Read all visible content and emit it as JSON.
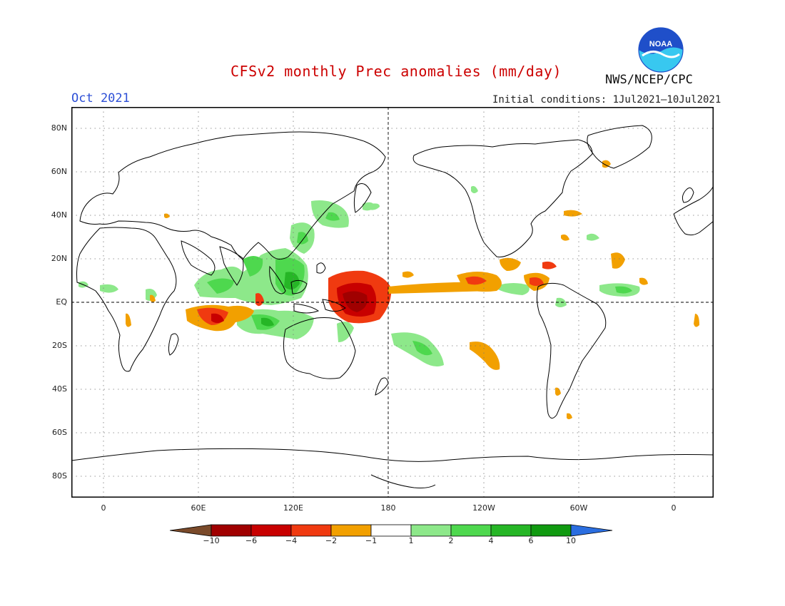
{
  "header": {
    "title": "CFSv2 monthly Prec anomalies (mm/day)",
    "month": "Oct 2021",
    "initial_conditions": "Initial conditions: 1Jul2021–10Jul2021",
    "agency": "NWS/NCEP/CPC",
    "logo_text": "NOAA"
  },
  "map": {
    "lat_labels": [
      "80N",
      "60N",
      "40N",
      "20N",
      "EQ",
      "20S",
      "40S",
      "60S",
      "80S"
    ],
    "lon_labels": [
      "0",
      "60E",
      "120E",
      "180",
      "120W",
      "60W",
      "0"
    ]
  },
  "legend": {
    "labels": [
      "−10",
      "−6",
      "−4",
      "−2",
      "−1",
      "1",
      "2",
      "4",
      "6",
      "10"
    ],
    "colors": [
      "#7a4a2a",
      "#a00000",
      "#c80000",
      "#f03a10",
      "#f2a000",
      "#ffffff",
      "#8de88a",
      "#4ed84e",
      "#26b626",
      "#109a10",
      "#2b6ee0"
    ]
  },
  "colors": {
    "title": "#cc0000",
    "month": "#2d4fd6",
    "noaa_blue": "#1f4fc9",
    "noaa_cyan": "#38c8f0"
  }
}
